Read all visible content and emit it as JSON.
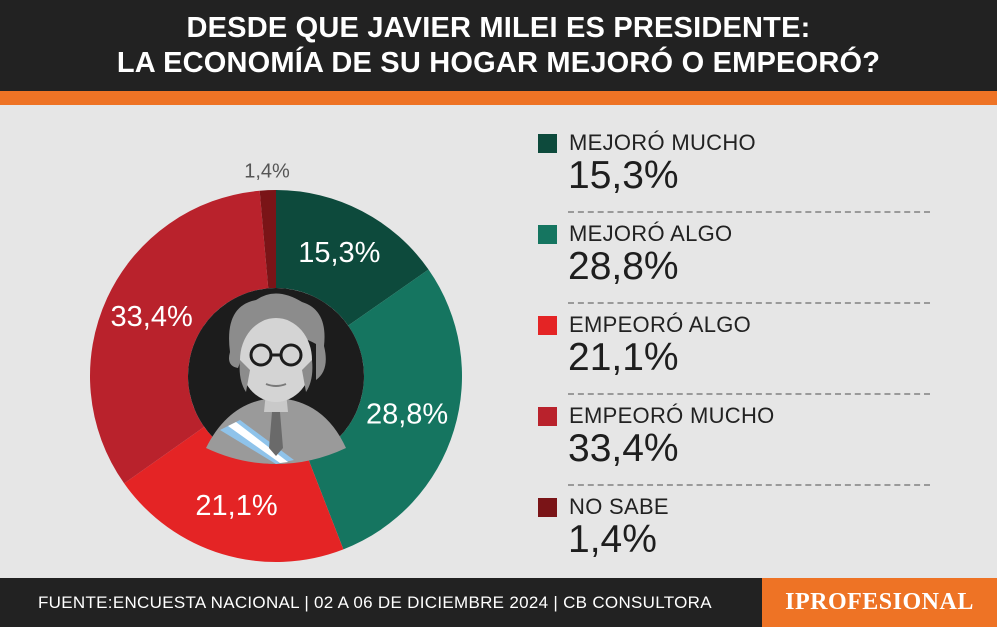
{
  "header": {
    "line1": "DESDE QUE JAVIER MILEI ES PRESIDENTE:",
    "line2": "LA ECONOMÍA DE SU HOGAR MEJORÓ O EMPEORÓ?"
  },
  "colors": {
    "header_bg": "#222222",
    "accent_orange": "#ee7325",
    "background": "#e6e6e6",
    "center_circle": "#1c1c1c"
  },
  "chart_data": {
    "type": "pie",
    "variant": "donut",
    "categories": [
      "MEJORÓ MUCHO",
      "MEJORÓ ALGO",
      "EMPEORÓ ALGO",
      "EMPEORÓ MUCHO",
      "NO SABE"
    ],
    "values": [
      15.3,
      28.8,
      21.1,
      33.4,
      1.4
    ],
    "value_labels": [
      "15,3%",
      "28,8%",
      "21,1%",
      "33,4%",
      "1,4%"
    ],
    "colors": [
      "#0d4a3c",
      "#157560",
      "#e42425",
      "#b9222c",
      "#7a1417"
    ],
    "center_image": "portrait-javier-milei",
    "legend_position": "right"
  },
  "legend": [
    {
      "label": "MEJORÓ MUCHO",
      "value": "15,3%",
      "color": "#0d4a3c"
    },
    {
      "label": "MEJORÓ ALGO",
      "value": "28,8%",
      "color": "#157560"
    },
    {
      "label": "EMPEORÓ ALGO",
      "value": "21,1%",
      "color": "#e42425"
    },
    {
      "label": "EMPEORÓ MUCHO",
      "value": "33,4%",
      "color": "#b9222c"
    },
    {
      "label": "NO SABE",
      "value": "1,4%",
      "color": "#7a1417"
    }
  ],
  "footer": {
    "source": "FUENTE:ENCUESTA NACIONAL | 02 A 06 DE DICIEMBRE 2024 | CB CONSULTORA",
    "brand": "IPROFESIONAL"
  }
}
